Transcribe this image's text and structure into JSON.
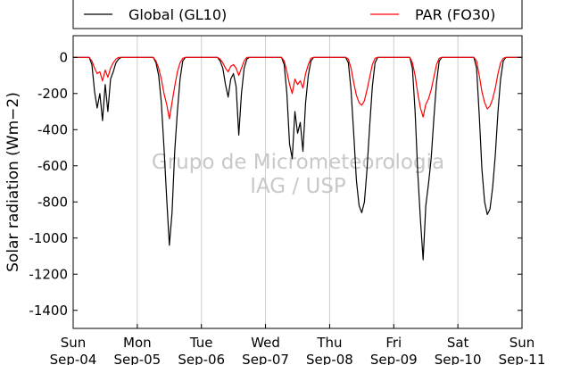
{
  "chart_data": {
    "type": "line",
    "ylabel": "Solar radiation (Wm−2)",
    "ylim": [
      -1500,
      120
    ],
    "xlim": [
      "2024-09-04",
      "2024-09-11"
    ],
    "yticks": [
      0,
      -200,
      -400,
      -600,
      -800,
      -1000,
      -1200,
      -1400
    ],
    "xticks": [
      {
        "x": "2024-09-04",
        "day": "Sun",
        "date": "Sep-04"
      },
      {
        "x": "2024-09-05",
        "day": "Mon",
        "date": "Sep-05"
      },
      {
        "x": "2024-09-06",
        "day": "Tue",
        "date": "Sep-06"
      },
      {
        "x": "2024-09-07",
        "day": "Wed",
        "date": "Sep-07"
      },
      {
        "x": "2024-09-08",
        "day": "Thu",
        "date": "Sep-08"
      },
      {
        "x": "2024-09-09",
        "day": "Fri",
        "date": "Sep-09"
      },
      {
        "x": "2024-09-10",
        "day": "Sat",
        "date": "Sep-10"
      },
      {
        "x": "2024-09-11",
        "day": "Sun",
        "date": "Sep-11"
      }
    ],
    "grid": "vertical",
    "legend": {
      "placement": "top, outside plot",
      "columns": 2
    },
    "watermark": [
      "Grupo de Micrometeorologia",
      "IAG / USP"
    ],
    "series": [
      {
        "name": "Global (GL10)",
        "color": "#000000",
        "x": [
          "2024-09-04T06:00",
          "2024-09-04T07:00",
          "2024-09-04T08:00",
          "2024-09-04T09:00",
          "2024-09-04T10:00",
          "2024-09-04T11:00",
          "2024-09-04T12:00",
          "2024-09-04T13:00",
          "2024-09-04T14:00",
          "2024-09-04T15:00",
          "2024-09-04T16:00",
          "2024-09-04T17:00",
          "2024-09-04T18:00",
          "2024-09-05T06:00",
          "2024-09-05T07:00",
          "2024-09-05T08:00",
          "2024-09-05T09:00",
          "2024-09-05T10:00",
          "2024-09-05T11:00",
          "2024-09-05T12:00",
          "2024-09-05T13:00",
          "2024-09-05T14:00",
          "2024-09-05T15:00",
          "2024-09-05T16:00",
          "2024-09-05T17:00",
          "2024-09-05T18:00",
          "2024-09-06T06:00",
          "2024-09-06T07:00",
          "2024-09-06T08:00",
          "2024-09-06T09:00",
          "2024-09-06T10:00",
          "2024-09-06T11:00",
          "2024-09-06T12:00",
          "2024-09-06T13:00",
          "2024-09-06T14:00",
          "2024-09-06T15:00",
          "2024-09-06T16:00",
          "2024-09-06T17:00",
          "2024-09-06T18:00",
          "2024-09-07T06:00",
          "2024-09-07T07:00",
          "2024-09-07T08:00",
          "2024-09-07T09:00",
          "2024-09-07T10:00",
          "2024-09-07T11:00",
          "2024-09-07T12:00",
          "2024-09-07T13:00",
          "2024-09-07T14:00",
          "2024-09-07T15:00",
          "2024-09-07T16:00",
          "2024-09-07T17:00",
          "2024-09-07T18:00",
          "2024-09-08T06:00",
          "2024-09-08T07:00",
          "2024-09-08T08:00",
          "2024-09-08T09:00",
          "2024-09-08T10:00",
          "2024-09-08T11:00",
          "2024-09-08T12:00",
          "2024-09-08T13:00",
          "2024-09-08T14:00",
          "2024-09-08T15:00",
          "2024-09-08T16:00",
          "2024-09-08T17:00",
          "2024-09-08T18:00",
          "2024-09-09T06:00",
          "2024-09-09T07:00",
          "2024-09-09T08:00",
          "2024-09-09T09:00",
          "2024-09-09T10:00",
          "2024-09-09T11:00",
          "2024-09-09T12:00",
          "2024-09-09T13:00",
          "2024-09-09T14:00",
          "2024-09-09T15:00",
          "2024-09-09T16:00",
          "2024-09-09T17:00",
          "2024-09-09T18:00",
          "2024-09-10T06:00",
          "2024-09-10T07:00",
          "2024-09-10T08:00",
          "2024-09-10T09:00",
          "2024-09-10T10:00",
          "2024-09-10T11:00",
          "2024-09-10T12:00",
          "2024-09-10T13:00",
          "2024-09-10T14:00",
          "2024-09-10T15:00",
          "2024-09-10T16:00",
          "2024-09-10T17:00",
          "2024-09-10T18:00"
        ],
        "y": [
          0,
          -40,
          -190,
          -280,
          -200,
          -350,
          -150,
          -300,
          -120,
          -80,
          -30,
          -10,
          0,
          0,
          -30,
          -100,
          -250,
          -500,
          -780,
          -1040,
          -860,
          -520,
          -300,
          -120,
          -20,
          0,
          0,
          -20,
          -60,
          -150,
          -220,
          -120,
          -90,
          -160,
          -430,
          -200,
          -60,
          -10,
          0,
          0,
          -40,
          -200,
          -480,
          -560,
          -300,
          -420,
          -360,
          -520,
          -250,
          -100,
          -20,
          0,
          0,
          -30,
          -180,
          -420,
          -680,
          -820,
          -860,
          -800,
          -620,
          -380,
          -160,
          -30,
          0,
          0,
          -60,
          -300,
          -640,
          -900,
          -1120,
          -820,
          -700,
          -560,
          -340,
          -140,
          -20,
          0,
          0,
          -60,
          -320,
          -620,
          -800,
          -870,
          -840,
          -720,
          -540,
          -300,
          -120,
          -20,
          0
        ]
      },
      {
        "name": "PAR (FO30)",
        "color": "#ff0000",
        "x": [
          "2024-09-04T06:00",
          "2024-09-04T07:00",
          "2024-09-04T08:00",
          "2024-09-04T09:00",
          "2024-09-04T10:00",
          "2024-09-04T11:00",
          "2024-09-04T12:00",
          "2024-09-04T13:00",
          "2024-09-04T14:00",
          "2024-09-04T15:00",
          "2024-09-04T16:00",
          "2024-09-04T17:00",
          "2024-09-04T18:00",
          "2024-09-05T06:00",
          "2024-09-05T07:00",
          "2024-09-05T08:00",
          "2024-09-05T09:00",
          "2024-09-05T10:00",
          "2024-09-05T11:00",
          "2024-09-05T12:00",
          "2024-09-05T13:00",
          "2024-09-05T14:00",
          "2024-09-05T15:00",
          "2024-09-05T16:00",
          "2024-09-05T17:00",
          "2024-09-05T18:00",
          "2024-09-06T06:00",
          "2024-09-06T07:00",
          "2024-09-06T08:00",
          "2024-09-06T09:00",
          "2024-09-06T10:00",
          "2024-09-06T11:00",
          "2024-09-06T12:00",
          "2024-09-06T13:00",
          "2024-09-06T14:00",
          "2024-09-06T15:00",
          "2024-09-06T16:00",
          "2024-09-06T17:00",
          "2024-09-06T18:00",
          "2024-09-07T06:00",
          "2024-09-07T07:00",
          "2024-09-07T08:00",
          "2024-09-07T09:00",
          "2024-09-07T10:00",
          "2024-09-07T11:00",
          "2024-09-07T12:00",
          "2024-09-07T13:00",
          "2024-09-07T14:00",
          "2024-09-07T15:00",
          "2024-09-07T16:00",
          "2024-09-07T17:00",
          "2024-09-07T18:00",
          "2024-09-08T06:00",
          "2024-09-08T07:00",
          "2024-09-08T08:00",
          "2024-09-08T09:00",
          "2024-09-08T10:00",
          "2024-09-08T11:00",
          "2024-09-08T12:00",
          "2024-09-08T13:00",
          "2024-09-08T14:00",
          "2024-09-08T15:00",
          "2024-09-08T16:00",
          "2024-09-08T17:00",
          "2024-09-08T18:00",
          "2024-09-09T06:00",
          "2024-09-09T07:00",
          "2024-09-09T08:00",
          "2024-09-09T09:00",
          "2024-09-09T10:00",
          "2024-09-09T11:00",
          "2024-09-09T12:00",
          "2024-09-09T13:00",
          "2024-09-09T14:00",
          "2024-09-09T15:00",
          "2024-09-09T16:00",
          "2024-09-09T17:00",
          "2024-09-09T18:00",
          "2024-09-10T06:00",
          "2024-09-10T07:00",
          "2024-09-10T08:00",
          "2024-09-10T09:00",
          "2024-09-10T10:00",
          "2024-09-10T11:00",
          "2024-09-10T12:00",
          "2024-09-10T13:00",
          "2024-09-10T14:00",
          "2024-09-10T15:00",
          "2024-09-10T16:00",
          "2024-09-10T17:00",
          "2024-09-10T18:00"
        ],
        "y": [
          0,
          -20,
          -60,
          -90,
          -80,
          -130,
          -70,
          -110,
          -60,
          -30,
          -10,
          0,
          0,
          0,
          -20,
          -60,
          -120,
          -200,
          -260,
          -340,
          -250,
          -160,
          -80,
          -30,
          -5,
          0,
          0,
          -10,
          -30,
          -60,
          -80,
          -50,
          -40,
          -60,
          -100,
          -60,
          -20,
          0,
          0,
          0,
          -20,
          -80,
          -150,
          -200,
          -120,
          -150,
          -130,
          -170,
          -90,
          -40,
          -5,
          0,
          0,
          -10,
          -60,
          -140,
          -210,
          -250,
          -265,
          -240,
          -180,
          -110,
          -40,
          -5,
          0,
          0,
          -30,
          -100,
          -200,
          -280,
          -330,
          -260,
          -230,
          -180,
          -110,
          -40,
          -5,
          0,
          0,
          -20,
          -100,
          -190,
          -250,
          -285,
          -270,
          -230,
          -170,
          -90,
          -30,
          -5,
          0
        ]
      }
    ]
  }
}
